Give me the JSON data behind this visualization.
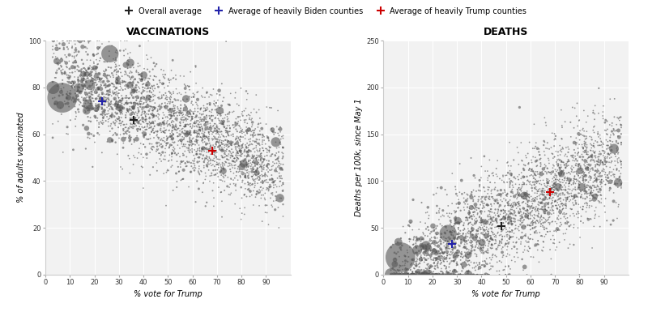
{
  "seed": 42,
  "n_counties": 3000,
  "title_vacc": "VACCINATIONS",
  "title_deaths": "DEATHS",
  "xlabel": "% vote for Trump",
  "ylabel_vacc": "% of adults vaccinated",
  "ylabel_deaths": "Deaths per 100k, since May 1",
  "xlim_vacc": [
    0,
    100
  ],
  "xlim_deaths": [
    0,
    100
  ],
  "ylim_vacc": [
    0,
    100
  ],
  "ylim_deaths": [
    0,
    250
  ],
  "xticks": [
    0,
    10,
    20,
    30,
    40,
    50,
    60,
    70,
    80,
    90
  ],
  "yticks_vacc": [
    0,
    20,
    40,
    60,
    80,
    100
  ],
  "yticks_deaths": [
    0,
    50,
    100,
    150,
    200,
    250
  ],
  "legend_labels": [
    "Overall average",
    "Average of heavily Biden counties",
    "Average of heavily Trump counties"
  ],
  "legend_colors": [
    "#222222",
    "#2222aa",
    "#cc0000"
  ],
  "overall_avg_vacc_x": 36,
  "overall_avg_vacc_y": 66,
  "biden_avg_vacc_x": 23,
  "biden_avg_vacc_y": 74,
  "trump_avg_vacc_x": 68,
  "trump_avg_vacc_y": 53,
  "overall_avg_deaths_x": 48,
  "overall_avg_deaths_y": 52,
  "biden_avg_deaths_x": 28,
  "biden_avg_deaths_y": 33,
  "trump_avg_deaths_x": 68,
  "trump_avg_deaths_y": 88,
  "dot_color": "#555555",
  "dot_alpha": 0.6,
  "bg_color": "#f2f2f2",
  "grid_color": "#ffffff",
  "title_fontsize": 9,
  "label_fontsize": 7,
  "tick_fontsize": 6,
  "legend_fontsize": 7,
  "marker_size": 7,
  "marker_lw": 1.5
}
